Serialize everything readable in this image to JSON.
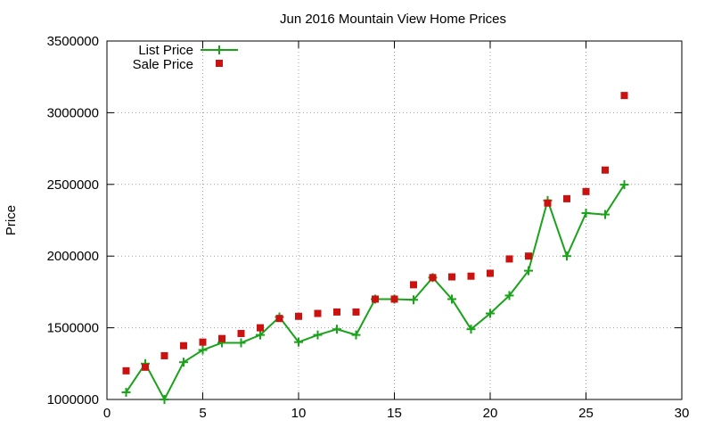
{
  "chart_data": {
    "type": "line",
    "title": "Jun 2016 Mountain View Home Prices",
    "xlabel": "",
    "ylabel": "Price",
    "xlim": [
      0,
      30
    ],
    "ylim": [
      1000000,
      3500000
    ],
    "xticks": [
      0,
      5,
      10,
      15,
      20,
      25,
      30
    ],
    "yticks": [
      1000000,
      1500000,
      2000000,
      2500000,
      3000000,
      3500000
    ],
    "grid": true,
    "legend_position": "top-left",
    "series": [
      {
        "name": "List Price",
        "type": "line",
        "marker": "plus",
        "color": "#1aa31a",
        "x": [
          1,
          2,
          3,
          4,
          5,
          6,
          7,
          8,
          9,
          10,
          11,
          12,
          13,
          14,
          15,
          16,
          17,
          18,
          19,
          20,
          21,
          22,
          23,
          24,
          25,
          26,
          27
        ],
        "values": [
          1050000,
          1250000,
          1000000,
          1260000,
          1345000,
          1395000,
          1395000,
          1450000,
          1575000,
          1400000,
          1450000,
          1490000,
          1450000,
          1700000,
          1700000,
          1695000,
          1850000,
          1700000,
          1490000,
          1600000,
          1725000,
          1898000,
          2388000,
          2000000,
          2300000,
          2290000,
          2498000
        ]
      },
      {
        "name": "Sale Price",
        "type": "scatter",
        "marker": "square",
        "color": "#cc1111",
        "x": [
          1,
          2,
          3,
          4,
          5,
          6,
          7,
          8,
          9,
          10,
          11,
          12,
          13,
          14,
          15,
          16,
          17,
          18,
          19,
          20,
          21,
          22,
          23,
          24,
          25,
          26,
          27
        ],
        "values": [
          1200000,
          1225000,
          1305000,
          1375000,
          1400000,
          1425000,
          1460000,
          1500000,
          1565000,
          1580000,
          1600000,
          1610000,
          1610000,
          1700000,
          1700000,
          1800000,
          1850000,
          1855000,
          1860000,
          1880000,
          1980000,
          2000000,
          2370000,
          2400000,
          2450000,
          2600000,
          3120000
        ]
      }
    ]
  }
}
